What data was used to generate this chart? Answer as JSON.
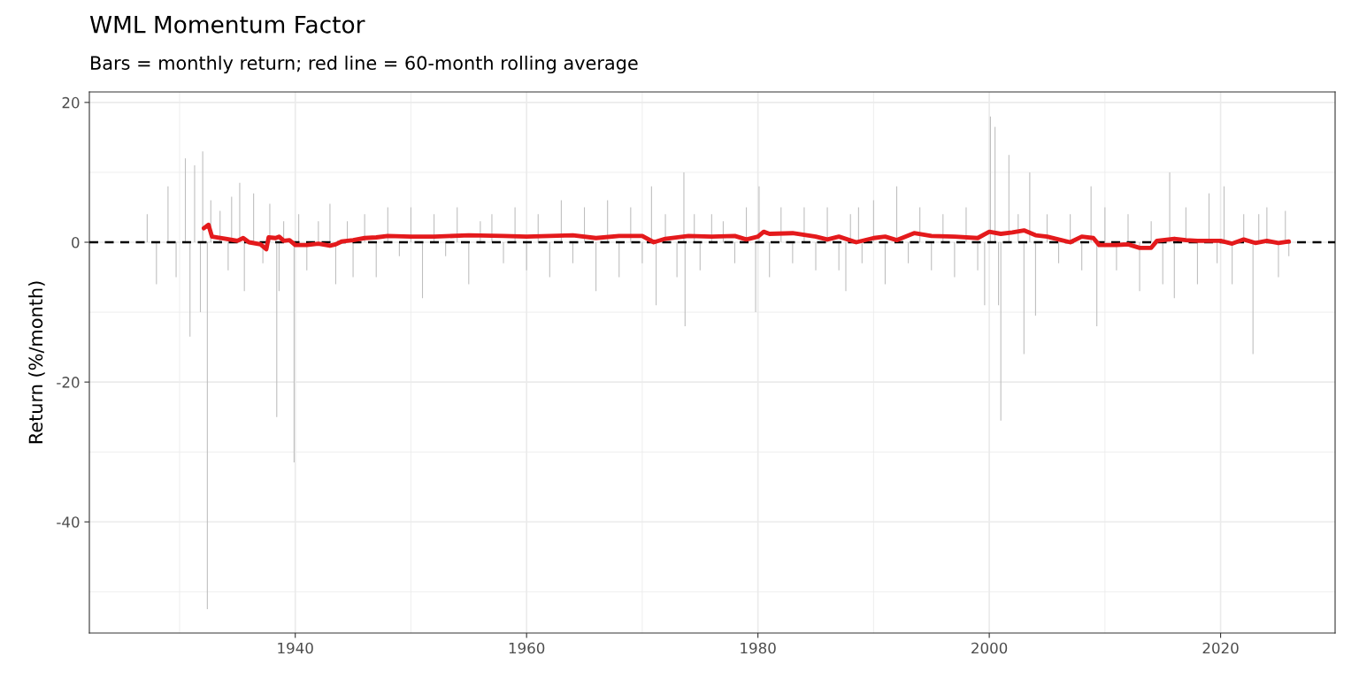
{
  "chart_data": {
    "type": "bar",
    "title": "WML Momentum Factor",
    "subtitle": "Bars = monthly return; red line = 60-month rolling average",
    "ylabel": "Return (%/month)",
    "xlim": [
      1922.2,
      2029.9
    ],
    "ylim": [
      -55.9,
      21.5
    ],
    "xticks": [
      1940,
      1960,
      1980,
      2000,
      2020
    ],
    "yticks": [
      -40,
      -20,
      0,
      20
    ],
    "grid": true,
    "ref_lines": [
      {
        "axis": "y",
        "value": 0,
        "label": null,
        "color": "#000000",
        "line_style": "dashed"
      }
    ],
    "series": [
      {
        "color": "#bebebe",
        "x": [
          1927.2,
          1928.0,
          1929.0,
          1929.7,
          1930.5,
          1930.9,
          1931.3,
          1931.8,
          1932.0,
          1932.4,
          1932.7,
          1933.5,
          1934.2,
          1934.5,
          1935.2,
          1935.6,
          1936.4,
          1937.2,
          1937.8,
          1938.4,
          1938.6,
          1939.0,
          1939.9,
          1940.3,
          1941.0,
          1942.0,
          1943.0,
          1943.5,
          1944.5,
          1945.0,
          1946.0,
          1947.0,
          1948.0,
          1949.0,
          1950.0,
          1951.0,
          1952.0,
          1953.0,
          1954.0,
          1955.0,
          1956.0,
          1957.0,
          1958.0,
          1959.0,
          1960.0,
          1961.0,
          1962.0,
          1963.0,
          1964.0,
          1965.0,
          1966.0,
          1967.0,
          1968.0,
          1969.0,
          1970.0,
          1970.8,
          1971.2,
          1972.0,
          1973.0,
          1973.6,
          1973.7,
          1974.5,
          1975.0,
          1976.0,
          1977.0,
          1978.0,
          1979.0,
          1979.8,
          1980.1,
          1981.0,
          1982.0,
          1983.0,
          1984.0,
          1985.0,
          1986.0,
          1987.0,
          1987.6,
          1988.0,
          1988.7,
          1989.0,
          1990.0,
          1991.0,
          1992.0,
          1993.0,
          1994.0,
          1995.0,
          1996.0,
          1997.0,
          1998.0,
          1999.0,
          1999.6,
          2000.1,
          2000.5,
          2000.8,
          2001.0,
          2001.7,
          2002.5,
          2003.0,
          2003.5,
          2004.0,
          2005.0,
          2006.0,
          2007.0,
          2008.0,
          2008.8,
          2009.3,
          2010.0,
          2011.0,
          2012.0,
          2013.0,
          2014.0,
          2015.0,
          2015.6,
          2016.0,
          2017.0,
          2018.0,
          2019.0,
          2019.7,
          2020.3,
          2021.0,
          2022.0,
          2022.8,
          2023.3,
          2024.0,
          2025.0,
          2025.6,
          2025.9
        ],
        "values": [
          4,
          -6,
          8,
          -5,
          12,
          -13.5,
          11,
          -10,
          13,
          -52.5,
          6,
          4.5,
          -4,
          6.5,
          8.5,
          -7,
          7,
          -3,
          5.5,
          -25,
          -7,
          3,
          -31.5,
          4,
          -4,
          3,
          5.5,
          -6,
          3,
          -5,
          4,
          -5,
          5,
          -2,
          5,
          -8,
          4,
          -2,
          5,
          -6,
          3,
          4,
          -3,
          5,
          -4,
          4,
          -5,
          6,
          -3,
          5,
          -7,
          6,
          -5,
          5,
          -3,
          8,
          -9,
          4,
          -5,
          10,
          -12,
          4,
          -4,
          4,
          3,
          -3,
          5,
          -10,
          8,
          -5,
          5,
          -3,
          5,
          -4,
          5,
          -4,
          -7,
          4,
          5,
          -3,
          6,
          -6,
          8,
          -3,
          5,
          -4,
          4,
          -5,
          5,
          -4,
          -9,
          18,
          16.5,
          -9,
          -25.5,
          12.5,
          4,
          -16,
          10,
          -10.5,
          4,
          -3,
          4,
          -4,
          8,
          -12,
          5,
          -4,
          4,
          -7,
          3,
          -6,
          10,
          -8,
          5,
          -6,
          7,
          -3,
          8,
          -6,
          4,
          -16,
          4,
          5,
          -5,
          4.5,
          -2
        ]
      },
      {
        "type": "line",
        "color": "#e41a1c",
        "x": [
          1932.1,
          1932.5,
          1932.8,
          1934,
          1935,
          1935.5,
          1936,
          1937,
          1937.5,
          1937.7,
          1938.3,
          1938.6,
          1939,
          1939.5,
          1940,
          1941,
          1942,
          1943,
          1943.5,
          1944,
          1945,
          1946,
          1947,
          1948,
          1950,
          1952,
          1955,
          1958,
          1960,
          1962,
          1964,
          1966,
          1968,
          1970,
          1971,
          1972,
          1974,
          1976,
          1978,
          1979,
          1980,
          1980.5,
          1981,
          1983,
          1985,
          1986,
          1987,
          1988.5,
          1990,
          1991,
          1992,
          1993.5,
          1995,
          1997,
          1999,
          2000,
          2001,
          2002,
          2003,
          2004,
          2005,
          2006,
          2007,
          2008,
          2009,
          2009.5,
          2011,
          2012,
          2013,
          2014,
          2014.5,
          2016,
          2017,
          2018,
          2020,
          2021,
          2022,
          2023,
          2024,
          2025,
          2025.9
        ],
        "values": [
          2,
          2.5,
          0.8,
          0.5,
          0.2,
          0.6,
          0,
          -0.3,
          -1,
          0.7,
          0.6,
          0.8,
          0.2,
          0.3,
          -0.4,
          -0.4,
          -0.2,
          -0.5,
          -0.3,
          0.1,
          0.3,
          0.6,
          0.7,
          0.9,
          0.8,
          0.8,
          1.0,
          0.9,
          0.8,
          0.9,
          1.0,
          0.6,
          0.9,
          0.9,
          0,
          0.5,
          0.9,
          0.8,
          0.9,
          0.4,
          0.8,
          1.5,
          1.2,
          1.3,
          0.8,
          0.4,
          0.8,
          0,
          0.6,
          0.8,
          0.3,
          1.3,
          0.9,
          0.8,
          0.6,
          1.5,
          1.2,
          1.4,
          1.7,
          1.0,
          0.8,
          0.4,
          0.0,
          0.8,
          0.6,
          -0.4,
          -0.4,
          -0.3,
          -0.8,
          -0.8,
          0.2,
          0.5,
          0.3,
          0.2,
          0.2,
          -0.2,
          0.4,
          -0.1,
          0.2,
          -0.1,
          0.1
        ]
      }
    ]
  }
}
